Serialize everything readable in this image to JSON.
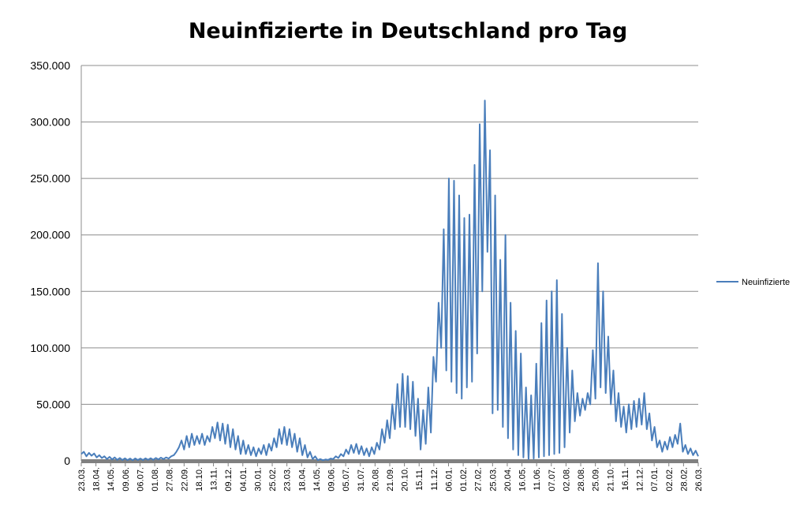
{
  "chart_data": {
    "type": "line",
    "title": "Neuinfizierte in Deutschland pro Tag",
    "xlabel": "",
    "ylabel": "",
    "ylim": [
      0,
      350000
    ],
    "y_ticks": [
      "0",
      "50.000",
      "100.000",
      "150.000",
      "200.000",
      "250.000",
      "300.000",
      "350.000"
    ],
    "y_tick_values": [
      0,
      50000,
      100000,
      150000,
      200000,
      250000,
      300000,
      350000
    ],
    "x_tick_labels": [
      "23.03.",
      "18.04.",
      "14.05.",
      "09.06.",
      "06.07.",
      "01.08.",
      "27.08.",
      "22.09.",
      "18.10.",
      "13.11.",
      "09.12.",
      "04.01.",
      "30.01.",
      "25.02.",
      "23.03.",
      "18.04.",
      "14.05.",
      "09.06.",
      "05.07.",
      "31.07.",
      "26.08.",
      "21.09.",
      "20.10.",
      "15.11.",
      "11.12.",
      "06.01.",
      "01.02.",
      "27.02.",
      "25.03.",
      "20.04.",
      "16.05.",
      "11.06.",
      "07.07.",
      "02.08.",
      "28.08.",
      "25.09.",
      "21.10.",
      "16.11.",
      "12.12.",
      "07.01.",
      "02.02.",
      "28.02.",
      "26.03."
    ],
    "grid": true,
    "legend_position": "right",
    "series": [
      {
        "name": "Neuinfizierte",
        "color": "#4a7ebb",
        "values": [
          6000,
          8000,
          4000,
          7000,
          4500,
          6500,
          3000,
          5000,
          2500,
          4000,
          1500,
          3500,
          1200,
          3000,
          800,
          2500,
          700,
          2200,
          600,
          2000,
          500,
          2100,
          700,
          2000,
          700,
          2200,
          900,
          2300,
          900,
          2500,
          1200,
          2800,
          1500,
          3000,
          2000,
          4000,
          5000,
          8000,
          12000,
          18000,
          10000,
          22000,
          12000,
          24000,
          14000,
          22000,
          15000,
          24000,
          14000,
          22000,
          17000,
          30000,
          20000,
          34000,
          18000,
          33000,
          15000,
          32000,
          12000,
          28000,
          10000,
          22000,
          6000,
          18000,
          6000,
          14000,
          5000,
          12000,
          4000,
          11000,
          6000,
          14000,
          5000,
          15000,
          9000,
          20000,
          12000,
          28000,
          15000,
          30000,
          14000,
          28000,
          12000,
          24000,
          8000,
          20000,
          5000,
          14000,
          3000,
          8000,
          1500,
          4000,
          600,
          1500,
          500,
          1200,
          800,
          2000,
          1500,
          4000,
          2500,
          6000,
          4000,
          10000,
          6000,
          14000,
          7000,
          15000,
          6000,
          13000,
          5000,
          11000,
          4000,
          12000,
          6000,
          16000,
          10000,
          28000,
          16000,
          36000,
          20000,
          50000,
          28000,
          68000,
          30000,
          77000,
          30000,
          75000,
          28000,
          70000,
          22000,
          55000,
          10000,
          45000,
          15000,
          65000,
          25000,
          92000,
          70000,
          140000,
          100000,
          205000,
          80000,
          250000,
          70000,
          248000,
          60000,
          235000,
          55000,
          215000,
          65000,
          218000,
          70000,
          262000,
          95000,
          298000,
          150000,
          319000,
          185000,
          275000,
          42000,
          235000,
          45000,
          178000,
          30000,
          200000,
          20000,
          140000,
          10000,
          115000,
          5000,
          95000,
          3000,
          65000,
          1500,
          58000,
          2000,
          86000,
          3000,
          122000,
          4000,
          142000,
          5000,
          150000,
          6000,
          160000,
          7000,
          130000,
          12000,
          100000,
          25000,
          80000,
          35000,
          60000,
          40000,
          55000,
          45000,
          60000,
          50000,
          98000,
          55000,
          175000,
          65000,
          150000,
          60000,
          110000,
          50000,
          80000,
          35000,
          60000,
          30000,
          48000,
          25000,
          50000,
          28000,
          53000,
          30000,
          55000,
          32000,
          60000,
          28000,
          42000,
          18000,
          30000,
          12000,
          18000,
          8000,
          17000,
          10000,
          21000,
          12000,
          23000,
          15000,
          33000,
          8000,
          14000,
          6000,
          11000,
          5000,
          9000,
          4000
        ]
      }
    ]
  }
}
